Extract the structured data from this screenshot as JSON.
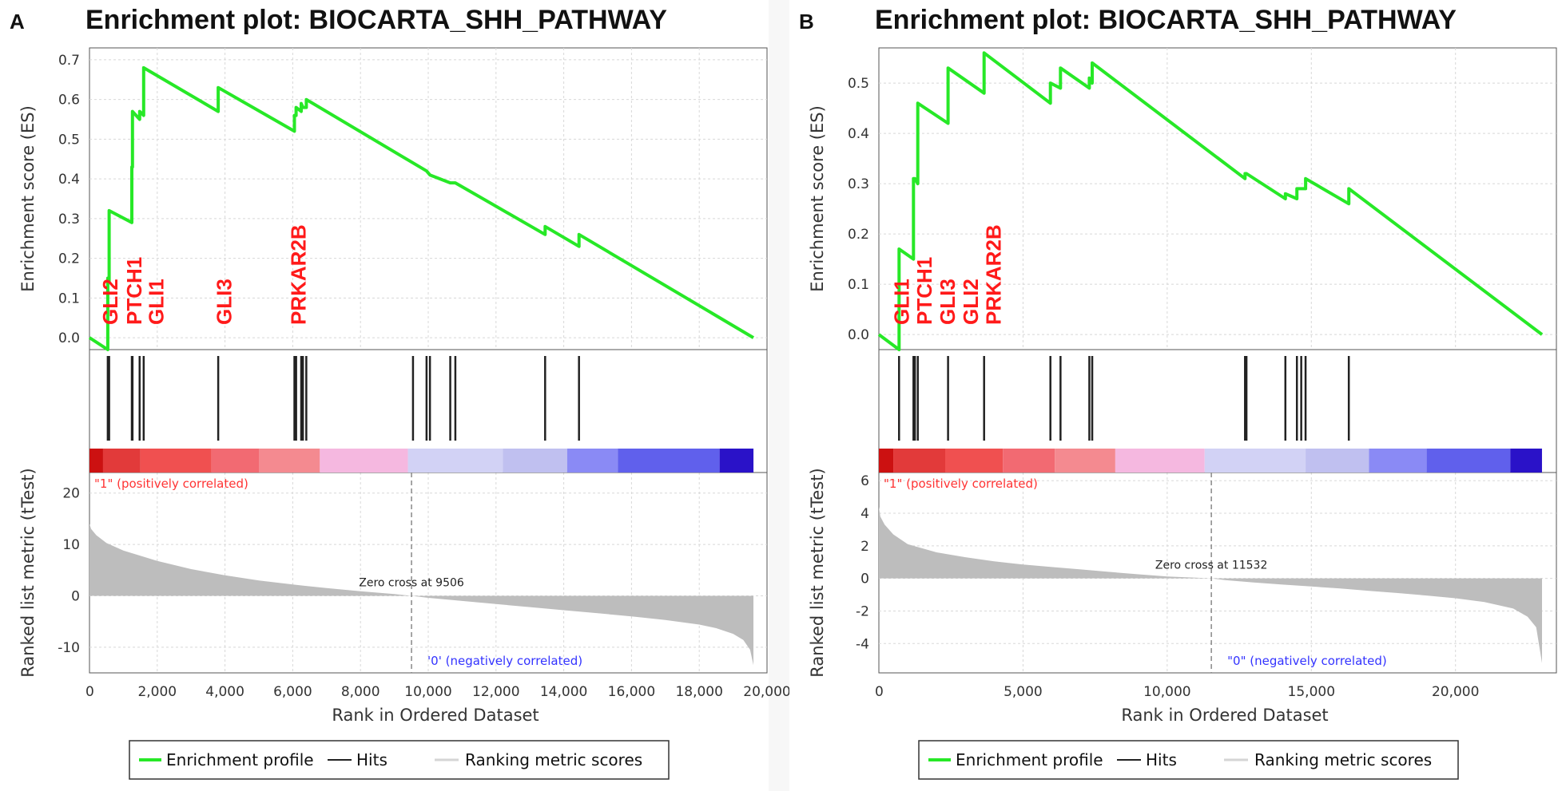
{
  "chart_data": [
    {
      "type": "line",
      "panel_label": "A",
      "title": "Enrichment plot: BIOCARTA_SHH_PATHWAY",
      "ylabel_es": "Enrichment score (ES)",
      "ylabel_metric": "Ranked list metric (tTest)",
      "xlabel": "Rank in Ordered Dataset",
      "xlim": [
        0,
        20000
      ],
      "x_ticks": [
        0,
        2000,
        4000,
        6000,
        8000,
        10000,
        12000,
        14000,
        16000,
        18000,
        20000
      ],
      "x_tick_labels": [
        "0",
        "2,000",
        "4,000",
        "6,000",
        "8,000",
        "10,000",
        "12,000",
        "14,000",
        "16,000",
        "18,000",
        "20,000"
      ],
      "es_ylim": [
        -0.03,
        0.73
      ],
      "es_ticks": [
        0.0,
        0.1,
        0.2,
        0.3,
        0.4,
        0.5,
        0.6,
        0.7
      ],
      "es_tick_labels": [
        "0.0",
        "0.1",
        "0.2",
        "0.3",
        "0.4",
        "0.5",
        "0.6",
        "0.7"
      ],
      "es_profile": {
        "x": [
          0,
          540,
          540,
          580,
          580,
          1250,
          1250,
          1270,
          1270,
          1480,
          1480,
          1600,
          1600,
          3800,
          3800,
          6050,
          6050,
          6100,
          6100,
          6250,
          6250,
          6300,
          6300,
          6400,
          6400,
          9950,
          9950,
          10050,
          10050,
          10650,
          10650,
          10800,
          10800,
          13450,
          13450,
          14450,
          14450,
          19600
        ],
        "y": [
          0.0,
          -0.03,
          0.15,
          0.14,
          0.32,
          0.29,
          0.43,
          0.43,
          0.57,
          0.55,
          0.57,
          0.56,
          0.68,
          0.57,
          0.63,
          0.52,
          0.56,
          0.56,
          0.58,
          0.57,
          0.59,
          0.58,
          0.58,
          0.58,
          0.6,
          0.42,
          0.42,
          0.41,
          0.41,
          0.39,
          0.39,
          0.39,
          0.39,
          0.26,
          0.28,
          0.23,
          0.26,
          0.0
        ]
      },
      "hits": [
        540,
        580,
        1250,
        1270,
        1480,
        1600,
        3800,
        6050,
        6100,
        6250,
        6300,
        6400,
        9550,
        9950,
        10050,
        10650,
        10800,
        13450,
        14450
      ],
      "gene_labels": [
        {
          "text": "GLI2",
          "x": 540
        },
        {
          "text": "PTCH1",
          "x": 1250
        },
        {
          "text": "GLI1",
          "x": 1900
        },
        {
          "text": "GLI3",
          "x": 3900
        },
        {
          "text": "PRKAR2B",
          "x": 6100
        }
      ],
      "heatmap_colors": [
        "#cc1111",
        "#e23a3a",
        "#f05050",
        "#f26a72",
        "#f48a90",
        "#f5b8e0",
        "#d2d2f5",
        "#c0c0f0",
        "#8a8af5",
        "#6060ec",
        "#2a12c8"
      ],
      "heatmap_breaks": [
        0,
        400,
        1500,
        3600,
        5000,
        6800,
        9400,
        12200,
        14100,
        15600,
        18600,
        19600
      ],
      "metric_ylim": [
        -15,
        24
      ],
      "metric_ticks": [
        -10,
        0,
        10,
        20
      ],
      "metric_tick_labels": [
        "-10",
        "0",
        "10",
        "20"
      ],
      "metric_curve": {
        "x": [
          0,
          50,
          200,
          500,
          1000,
          2000,
          3000,
          4000,
          5000,
          6000,
          7000,
          8000,
          9000,
          9506,
          10000,
          11000,
          12000,
          13000,
          14000,
          15000,
          16000,
          17000,
          18000,
          18500,
          19000,
          19300,
          19500,
          19600
        ],
        "y": [
          14,
          13,
          11.8,
          10.3,
          8.8,
          6.8,
          5.2,
          4.0,
          3.0,
          2.2,
          1.5,
          0.9,
          0.35,
          0,
          -0.4,
          -1.0,
          -1.6,
          -2.2,
          -2.8,
          -3.4,
          -4.0,
          -4.7,
          -5.6,
          -6.3,
          -7.4,
          -8.6,
          -10.5,
          -13.5
        ]
      },
      "zero_cross": 9506,
      "zero_cross_text": "Zero cross at 9506",
      "pos_label": "\"1\" (positively correlated)",
      "neg_label": "'0' (negatively correlated)"
    },
    {
      "type": "line",
      "panel_label": "B",
      "title": "Enrichment plot: BIOCARTA_SHH_PATHWAY",
      "ylabel_es": "Enrichment score (ES)",
      "ylabel_metric": "Ranked list metric (tTest)",
      "xlabel": "Rank in Ordered Dataset",
      "xlim": [
        0,
        23500
      ],
      "x_ticks": [
        0,
        5000,
        10000,
        15000,
        20000
      ],
      "x_tick_labels": [
        "0",
        "5,000",
        "10,000",
        "15,000",
        "20,000"
      ],
      "es_ylim": [
        -0.03,
        0.57
      ],
      "es_ticks": [
        0.0,
        0.1,
        0.2,
        0.3,
        0.4,
        0.5
      ],
      "es_tick_labels": [
        "0.0",
        "0.1",
        "0.2",
        "0.3",
        "0.4",
        "0.5"
      ],
      "es_profile": {
        "x": [
          0,
          700,
          700,
          1200,
          1200,
          1250,
          1250,
          1350,
          1350,
          2400,
          2400,
          3650,
          3650,
          5950,
          5950,
          6300,
          6300,
          7300,
          7300,
          7400,
          7400,
          12700,
          12700,
          12750,
          12750,
          14100,
          14100,
          14500,
          14500,
          14650,
          14650,
          14800,
          14800,
          16300,
          16300,
          23000
        ],
        "y": [
          0.0,
          -0.03,
          0.17,
          0.15,
          0.31,
          0.31,
          0.31,
          0.3,
          0.46,
          0.42,
          0.53,
          0.48,
          0.56,
          0.46,
          0.5,
          0.49,
          0.53,
          0.49,
          0.51,
          0.5,
          0.54,
          0.31,
          0.32,
          0.32,
          0.32,
          0.27,
          0.28,
          0.27,
          0.29,
          0.29,
          0.29,
          0.29,
          0.31,
          0.26,
          0.29,
          0.0
        ]
      },
      "hits": [
        700,
        1200,
        1250,
        1350,
        2400,
        3650,
        5950,
        6300,
        7300,
        7400,
        12700,
        12750,
        14100,
        14500,
        14650,
        14800,
        16300
      ],
      "gene_labels": [
        {
          "text": "GLI1",
          "x": 700
        },
        {
          "text": "PTCH1",
          "x": 1500
        },
        {
          "text": "GLI3",
          "x": 2300
        },
        {
          "text": "GLI2",
          "x": 3100
        },
        {
          "text": "PRKAR2B",
          "x": 3900
        }
      ],
      "heatmap_colors": [
        "#cc1111",
        "#e23a3a",
        "#f05050",
        "#f26a72",
        "#f48a90",
        "#f5b8e0",
        "#d2d2f5",
        "#c0c0f0",
        "#8a8af5",
        "#6060ec",
        "#2a12c8"
      ],
      "heatmap_breaks": [
        0,
        500,
        2300,
        4300,
        6100,
        8200,
        11300,
        14800,
        17000,
        19000,
        21900,
        23000
      ],
      "metric_ylim": [
        -5.8,
        6.5
      ],
      "metric_ticks": [
        -4,
        -2,
        0,
        2,
        4,
        6
      ],
      "metric_tick_labels": [
        "-4",
        "-2",
        "0",
        "2",
        "4",
        "6"
      ],
      "metric_curve": {
        "x": [
          0,
          50,
          200,
          500,
          1000,
          2000,
          3000,
          4000,
          5000,
          6000,
          7000,
          8000,
          9000,
          10000,
          11000,
          11532,
          12000,
          13000,
          14000,
          15000,
          16000,
          17000,
          18000,
          19000,
          20000,
          21000,
          22000,
          22500,
          22800,
          23000
        ],
        "y": [
          4.4,
          3.8,
          3.3,
          2.7,
          2.1,
          1.6,
          1.3,
          1.05,
          0.85,
          0.7,
          0.55,
          0.4,
          0.25,
          0.12,
          0.04,
          0,
          -0.1,
          -0.25,
          -0.38,
          -0.5,
          -0.62,
          -0.76,
          -0.9,
          -1.05,
          -1.22,
          -1.45,
          -1.85,
          -2.35,
          -3.0,
          -5.2
        ]
      },
      "zero_cross": 11532,
      "zero_cross_text": "Zero cross at 11532",
      "pos_label": "\"1\" (positively correlated)",
      "neg_label": "\"0\" (negatively correlated)"
    }
  ],
  "legend": {
    "enrichment_profile": "Enrichment profile",
    "hits": "Hits",
    "ranking_metric_scores": "Ranking metric scores"
  },
  "colors": {
    "es_line": "#27e827",
    "hit_line": "#222222",
    "metric_fill": "#bdbdbd"
  }
}
